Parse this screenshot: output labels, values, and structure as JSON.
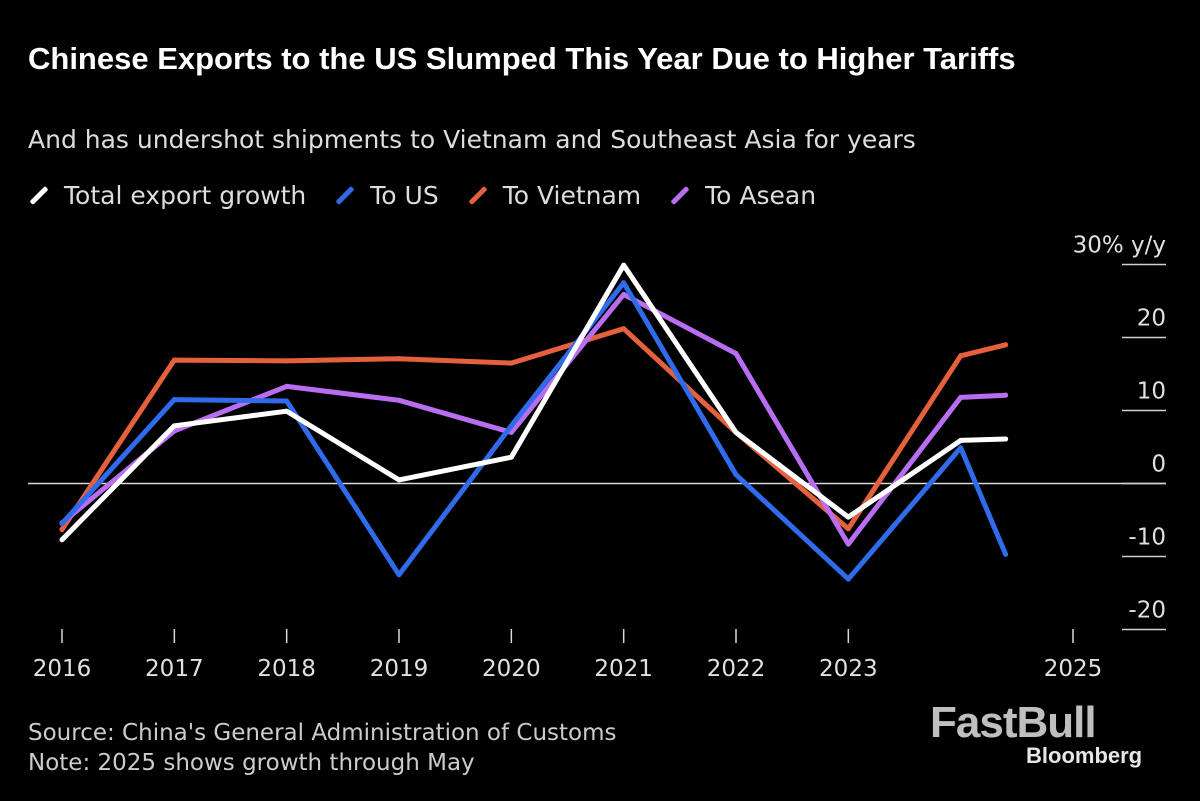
{
  "chart_data": {
    "type": "line",
    "title": "Chinese Exports to the US Slumped This Year Due to Higher Tariffs",
    "subtitle": "And has undershot shipments to Vietnam and Southeast Asia for years",
    "ylabel": "30% y/y",
    "ylim": [
      -20,
      30
    ],
    "yticks": [
      {
        "value": 30,
        "label": "30% y/y"
      },
      {
        "value": 20,
        "label": "20"
      },
      {
        "value": 10,
        "label": "10"
      },
      {
        "value": 0,
        "label": "0"
      },
      {
        "value": -10,
        "label": "-10"
      },
      {
        "value": -20,
        "label": "-20"
      }
    ],
    "xlim": [
      2016,
      2025
    ],
    "xticks": [
      "2016",
      "2017",
      "2018",
      "2019",
      "2020",
      "2021",
      "2022",
      "2023",
      "2025"
    ],
    "x": [
      2016,
      2017,
      2018,
      2019,
      2020,
      2021,
      2022,
      2023,
      2024,
      2024.4
    ],
    "series": [
      {
        "name": "Total export growth",
        "color": "#ffffff",
        "values": [
          -7.7,
          7.9,
          9.9,
          0.5,
          3.6,
          29.9,
          7.0,
          -4.6,
          5.9,
          6.1
        ]
      },
      {
        "name": "To US",
        "color": "#2f6bea",
        "values": [
          -5.5,
          11.5,
          11.3,
          -12.5,
          7.9,
          27.5,
          1.2,
          -13.1,
          4.9,
          -9.7
        ]
      },
      {
        "name": "To Vietnam",
        "color": "#e5603c",
        "values": [
          -6.3,
          16.9,
          16.8,
          17.1,
          16.5,
          21.2,
          7.0,
          -6.2,
          17.5,
          19.0
        ]
      },
      {
        "name": "To Asean",
        "color": "#b96ef2",
        "values": [
          -5.4,
          7.2,
          13.3,
          11.4,
          7.0,
          25.9,
          17.8,
          -8.3,
          11.8,
          12.1
        ]
      }
    ],
    "source": "Source: China's General Administration of Customs",
    "note": "Note: 2025 shows growth through May"
  },
  "branding": {
    "watermark": "FastBull",
    "publisher": "Bloomberg"
  }
}
